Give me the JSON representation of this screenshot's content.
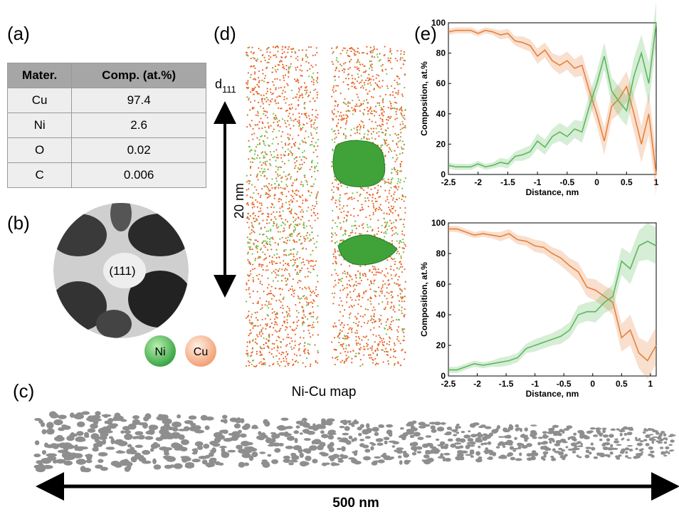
{
  "panels": {
    "a": "(a)",
    "b": "(b)",
    "c": "(c)",
    "d": "(d)",
    "e": "(e)"
  },
  "table": {
    "header": [
      "Mater.",
      "Comp. (at.%)"
    ],
    "rows": [
      [
        "Cu",
        "97.4"
      ],
      [
        "Ni",
        "2.6"
      ],
      [
        "O",
        "0.02"
      ],
      [
        "C",
        "0.006"
      ]
    ]
  },
  "pattern_label": "(111)",
  "legend": [
    {
      "label": "Ni",
      "color": "#4caf50"
    },
    {
      "label": "Cu",
      "color": "#f4a27a"
    }
  ],
  "map": {
    "d_label": "d",
    "d_sub": "111",
    "scale": "20 nm",
    "caption": "Ni-Cu map"
  },
  "strip": {
    "scale": "500 nm"
  },
  "chart_data": [
    {
      "type": "line",
      "xlabel": "Distance, nm",
      "ylabel": "Composition, at.%",
      "x": [
        -2.5,
        -2.375,
        -2.25,
        -2.125,
        -2,
        -1.875,
        -1.75,
        -1.625,
        -1.5,
        -1.375,
        -1.25,
        -1.125,
        -1,
        -0.875,
        -0.75,
        -0.625,
        -0.5,
        -0.375,
        -0.25,
        -0.125,
        0,
        0.125,
        0.25,
        0.375,
        0.5,
        0.625,
        0.75,
        0.875,
        1
      ],
      "series": [
        {
          "color": "#e8803a",
          "values": [
            94,
            95,
            95,
            95,
            93,
            95,
            94,
            92,
            93,
            88,
            87,
            85,
            78,
            82,
            75,
            72,
            75,
            70,
            72,
            55,
            40,
            22,
            45,
            50,
            58,
            40,
            20,
            40,
            0
          ],
          "errors": [
            2,
            2,
            2,
            2,
            2,
            2,
            2,
            3,
            3,
            3,
            4,
            4,
            5,
            5,
            5,
            6,
            6,
            6,
            7,
            8,
            8,
            9,
            9,
            10,
            10,
            12,
            12,
            14,
            14
          ]
        },
        {
          "color": "#5cb85c",
          "values": [
            6,
            5,
            5,
            5,
            7,
            5,
            6,
            8,
            7,
            12,
            13,
            15,
            22,
            18,
            25,
            28,
            25,
            30,
            28,
            45,
            60,
            78,
            55,
            48,
            42,
            65,
            80,
            60,
            100
          ],
          "errors": [
            2,
            2,
            2,
            2,
            2,
            2,
            2,
            3,
            3,
            3,
            4,
            4,
            5,
            5,
            5,
            6,
            6,
            6,
            7,
            8,
            8,
            9,
            9,
            10,
            10,
            12,
            12,
            14,
            14
          ]
        }
      ],
      "xlim": [
        -2.5,
        1
      ],
      "xticks": [
        -2.5,
        -2,
        -1.5,
        -1,
        -0.5,
        0,
        0.5,
        1
      ],
      "ylim": [
        0,
        100
      ],
      "yticks": [
        0,
        20,
        40,
        60,
        80,
        100
      ]
    },
    {
      "type": "line",
      "xlabel": "Distance, nm",
      "ylabel": "Composition, at.%",
      "x": [
        -2.5,
        -2.35,
        -2.2,
        -2.05,
        -1.9,
        -1.75,
        -1.6,
        -1.45,
        -1.3,
        -1.15,
        -1,
        -0.85,
        -0.7,
        -0.55,
        -0.4,
        -0.25,
        -0.1,
        0.05,
        0.2,
        0.35,
        0.5,
        0.65,
        0.8,
        0.95,
        1.1
      ],
      "series": [
        {
          "color": "#e8803a",
          "values": [
            96,
            96,
            94,
            92,
            93,
            92,
            91,
            93,
            89,
            88,
            85,
            84,
            80,
            77,
            72,
            68,
            58,
            56,
            52,
            48,
            25,
            30,
            15,
            10,
            20
          ],
          "errors": [
            2,
            2,
            2,
            2,
            2,
            2,
            3,
            3,
            3,
            3,
            4,
            4,
            4,
            5,
            5,
            6,
            6,
            7,
            7,
            8,
            9,
            10,
            10,
            12,
            12
          ]
        },
        {
          "color": "#5cb85c",
          "values": [
            4,
            4,
            6,
            8,
            7,
            8,
            9,
            10,
            12,
            18,
            20,
            22,
            24,
            26,
            30,
            40,
            42,
            42,
            48,
            52,
            75,
            70,
            85,
            88,
            85
          ],
          "errors": [
            2,
            2,
            2,
            2,
            2,
            2,
            3,
            3,
            3,
            3,
            4,
            4,
            4,
            5,
            5,
            6,
            6,
            7,
            7,
            8,
            9,
            10,
            10,
            12,
            12
          ]
        }
      ],
      "xlim": [
        -2.5,
        1.1
      ],
      "xticks": [
        -2.5,
        -2,
        -1.5,
        -1,
        -0.5,
        0,
        0.5,
        1
      ],
      "ylim": [
        0,
        100
      ],
      "yticks": [
        0,
        20,
        40,
        60,
        80,
        100
      ]
    }
  ]
}
